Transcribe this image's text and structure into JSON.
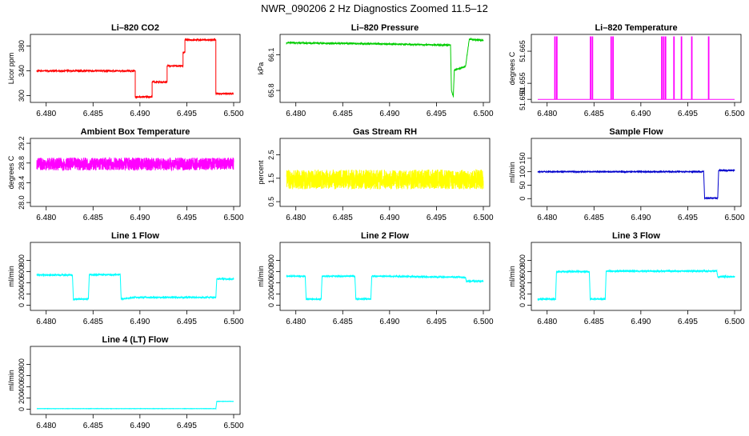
{
  "page": {
    "title": "NWR_090206  2 Hz Diagnostics Zoomed 11.5–12"
  },
  "chart_data": [
    {
      "type": "line",
      "title": "Li–820 CO2",
      "ylabel": "Licor ppm",
      "color": "#ff0000",
      "xlim": [
        6.479,
        6.5
      ],
      "ylim": [
        293,
        395
      ],
      "xticks": [
        6.48,
        6.485,
        6.49,
        6.495,
        6.5
      ],
      "xtick_labels": [
        "6.480",
        "6.485",
        "6.490",
        "6.495",
        "6.500"
      ],
      "yticks": [
        300,
        340,
        380
      ],
      "ytick_labels": [
        "300",
        "340",
        "380"
      ],
      "points": [
        [
          6.479,
          340
        ],
        [
          6.4895,
          340
        ],
        [
          6.4895,
          298
        ],
        [
          6.4913,
          298
        ],
        [
          6.4913,
          322
        ],
        [
          6.4929,
          322
        ],
        [
          6.4929,
          348
        ],
        [
          6.4946,
          348
        ],
        [
          6.4946,
          370
        ],
        [
          6.4948,
          370
        ],
        [
          6.4948,
          390
        ],
        [
          6.4981,
          390
        ],
        [
          6.4981,
          303
        ],
        [
          6.5,
          303
        ]
      ],
      "noise": 1.2
    },
    {
      "type": "line",
      "title": "Li–820 Pressure",
      "ylabel": "kPa",
      "color": "#00cc00",
      "xlim": [
        6.479,
        6.5
      ],
      "ylim": [
        65.72,
        66.25
      ],
      "xticks": [
        6.48,
        6.485,
        6.49,
        6.495,
        6.5
      ],
      "xtick_labels": [
        "6.480",
        "6.485",
        "6.490",
        "6.495",
        "6.500"
      ],
      "yticks": [
        65.8,
        66.1
      ],
      "ytick_labels": [
        "65.8",
        "66.1"
      ],
      "points": [
        [
          6.479,
          66.2
        ],
        [
          6.4895,
          66.19
        ],
        [
          6.4965,
          66.18
        ],
        [
          6.4966,
          65.8
        ],
        [
          6.4968,
          65.75
        ],
        [
          6.4969,
          65.97
        ],
        [
          6.4981,
          66.0
        ],
        [
          6.4985,
          66.23
        ],
        [
          6.5,
          66.22
        ]
      ],
      "noise": 0.006
    },
    {
      "type": "line",
      "title": "Li–820 Temperature",
      "ylabel": "degrees C",
      "color": "#ff00ff",
      "xlim": [
        6.479,
        6.5
      ],
      "ylim": [
        51.6498,
        51.6695
      ],
      "xticks": [
        6.48,
        6.485,
        6.49,
        6.495,
        6.5
      ],
      "xtick_labels": [
        "6.480",
        "6.485",
        "6.490",
        "6.495",
        "6.500"
      ],
      "yticks": [
        51.65,
        51.655,
        51.665
      ],
      "ytick_labels": [
        "51.650",
        "51.655",
        "51.665"
      ],
      "baseline": 51.65,
      "spikes": [
        6.4808,
        6.481,
        6.4846,
        6.4848,
        6.4868,
        6.487,
        6.4922,
        6.4924,
        6.4926,
        6.4935,
        6.4943,
        6.4954,
        6.4972
      ],
      "spike_top": 51.6695
    },
    {
      "type": "line",
      "title": "Ambient Box Temperature",
      "ylabel": "degrees C",
      "color": "#ff00ff",
      "xlim": [
        6.479,
        6.5
      ],
      "ylim": [
        27.97,
        29.25
      ],
      "xticks": [
        6.48,
        6.485,
        6.49,
        6.495,
        6.5
      ],
      "xtick_labels": [
        "6.480",
        "6.485",
        "6.490",
        "6.495",
        "6.500"
      ],
      "yticks": [
        28.0,
        28.4,
        28.8,
        29.2
      ],
      "ytick_labels": [
        "28.0",
        "28.4",
        "28.8",
        "29.2"
      ],
      "points": [
        [
          6.479,
          28.78
        ],
        [
          6.5,
          28.78
        ]
      ],
      "noise": 0.13
    },
    {
      "type": "line",
      "title": "Gas Stream RH",
      "ylabel": "percent",
      "color": "#ffff00",
      "xlim": [
        6.479,
        6.5
      ],
      "ylim": [
        0.4,
        3.1
      ],
      "xticks": [
        6.48,
        6.485,
        6.49,
        6.495,
        6.5
      ],
      "xtick_labels": [
        "6.480",
        "6.485",
        "6.490",
        "6.495",
        "6.500"
      ],
      "yticks": [
        0.5,
        1.5,
        2.5
      ],
      "ytick_labels": [
        "0.5",
        "1.5",
        "2.5"
      ],
      "points": [
        [
          6.479,
          1.45
        ],
        [
          6.5,
          1.45
        ]
      ],
      "noise": 0.42
    },
    {
      "type": "line",
      "title": "Sample Flow",
      "ylabel": "ml/min",
      "color": "#0000cc",
      "xlim": [
        6.479,
        6.5
      ],
      "ylim": [
        -20,
        215
      ],
      "xticks": [
        6.48,
        6.485,
        6.49,
        6.495,
        6.5
      ],
      "xtick_labels": [
        "6.480",
        "6.485",
        "6.490",
        "6.495",
        "6.500"
      ],
      "yticks": [
        0,
        50,
        100,
        150
      ],
      "ytick_labels": [
        "0",
        "50",
        "100",
        "150"
      ],
      "points": [
        [
          6.479,
          100
        ],
        [
          6.4967,
          100
        ],
        [
          6.4968,
          2
        ],
        [
          6.4982,
          2
        ],
        [
          6.4983,
          105
        ],
        [
          6.5,
          105
        ]
      ],
      "noise": 1.5
    },
    {
      "type": "line",
      "title": "Line 1 Flow",
      "ylabel": "ml/min",
      "color": "#00ffff",
      "xlim": [
        6.479,
        6.5
      ],
      "ylim": [
        -50,
        1080
      ],
      "xticks": [
        6.48,
        6.485,
        6.49,
        6.495,
        6.5
      ],
      "xtick_labels": [
        "6.480",
        "6.485",
        "6.490",
        "6.495",
        "6.500"
      ],
      "yticks": [
        0,
        200,
        400,
        600,
        800
      ],
      "ytick_labels": [
        "0",
        "200",
        "400",
        "600",
        "800"
      ],
      "points": [
        [
          6.479,
          540
        ],
        [
          6.4828,
          540
        ],
        [
          6.4829,
          110
        ],
        [
          6.4845,
          110
        ],
        [
          6.4846,
          545
        ],
        [
          6.4879,
          545
        ],
        [
          6.488,
          110
        ],
        [
          6.4895,
          140
        ],
        [
          6.4981,
          140
        ],
        [
          6.4982,
          470
        ],
        [
          6.5,
          470
        ]
      ],
      "noise": 12
    },
    {
      "type": "line",
      "title": "Line 2 Flow",
      "ylabel": "ml/min",
      "color": "#00ffff",
      "xlim": [
        6.479,
        6.5
      ],
      "ylim": [
        -50,
        1080
      ],
      "xticks": [
        6.48,
        6.485,
        6.49,
        6.495,
        6.5
      ],
      "xtick_labels": [
        "6.480",
        "6.485",
        "6.490",
        "6.495",
        "6.500"
      ],
      "yticks": [
        0,
        200,
        400,
        600,
        800
      ],
      "ytick_labels": [
        "0",
        "200",
        "400",
        "600",
        "800"
      ],
      "points": [
        [
          6.479,
          520
        ],
        [
          6.481,
          520
        ],
        [
          6.4811,
          110
        ],
        [
          6.4827,
          110
        ],
        [
          6.4828,
          520
        ],
        [
          6.4863,
          520
        ],
        [
          6.4864,
          110
        ],
        [
          6.488,
          110
        ],
        [
          6.4881,
          520
        ],
        [
          6.4981,
          500
        ],
        [
          6.4982,
          430
        ],
        [
          6.5,
          430
        ]
      ],
      "noise": 12
    },
    {
      "type": "line",
      "title": "Line 3 Flow",
      "ylabel": "ml/min",
      "color": "#00ffff",
      "xlim": [
        6.479,
        6.5
      ],
      "ylim": [
        -50,
        1080
      ],
      "xticks": [
        6.48,
        6.485,
        6.49,
        6.495,
        6.5
      ],
      "xtick_labels": [
        "6.480",
        "6.485",
        "6.490",
        "6.495",
        "6.500"
      ],
      "yticks": [
        0,
        200,
        400,
        600,
        800
      ],
      "ytick_labels": [
        "0",
        "200",
        "400",
        "600",
        "800"
      ],
      "points": [
        [
          6.479,
          110
        ],
        [
          6.4809,
          110
        ],
        [
          6.481,
          600
        ],
        [
          6.4845,
          600
        ],
        [
          6.4846,
          110
        ],
        [
          6.4862,
          110
        ],
        [
          6.4863,
          610
        ],
        [
          6.4981,
          610
        ],
        [
          6.4982,
          510
        ],
        [
          6.5,
          510
        ]
      ],
      "noise": 14
    },
    {
      "type": "line",
      "title": "Line 4 (LT) Flow",
      "ylabel": "ml/min",
      "color": "#00ffff",
      "xlim": [
        6.479,
        6.5
      ],
      "ylim": [
        -50,
        1080
      ],
      "xticks": [
        6.48,
        6.485,
        6.49,
        6.495,
        6.5
      ],
      "xtick_labels": [
        "6.480",
        "6.485",
        "6.490",
        "6.495",
        "6.500"
      ],
      "yticks": [
        0,
        200,
        400,
        600,
        800
      ],
      "ytick_labels": [
        "0",
        "200",
        "400",
        "600",
        "800"
      ],
      "points": [
        [
          6.479,
          10
        ],
        [
          6.4981,
          10
        ],
        [
          6.4982,
          140
        ],
        [
          6.5,
          140
        ]
      ],
      "noise": 2
    }
  ]
}
